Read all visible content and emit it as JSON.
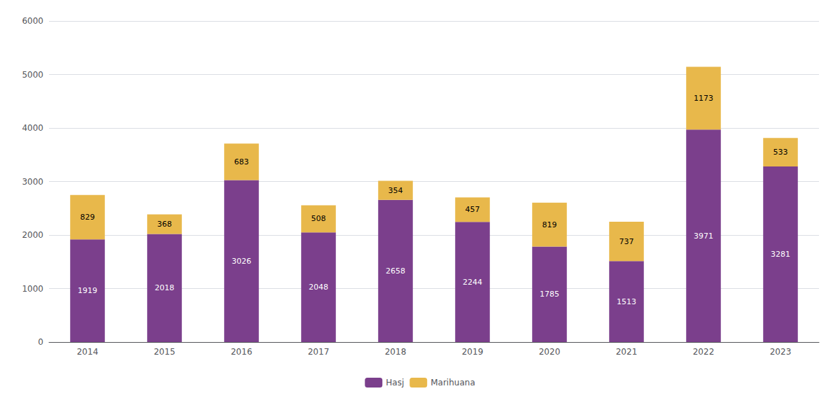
{
  "chart_data": {
    "type": "bar",
    "categories": [
      "2014",
      "2015",
      "2016",
      "2017",
      "2018",
      "2019",
      "2020",
      "2021",
      "2022",
      "2023"
    ],
    "series": [
      {
        "name": "Hasj",
        "color": "#7B3F8C",
        "values": [
          1919,
          2018,
          3026,
          2048,
          2658,
          2244,
          1785,
          1513,
          3971,
          3281
        ]
      },
      {
        "name": "Marihuana",
        "color": "#E8B84B",
        "values": [
          829,
          368,
          683,
          508,
          354,
          457,
          819,
          737,
          1173,
          533
        ]
      }
    ],
    "ylim": [
      0,
      6000
    ],
    "yticks": [
      0,
      1000,
      2000,
      3000,
      4000,
      5000,
      6000
    ],
    "stacked": true,
    "data_labels": true,
    "grid": true,
    "legend": "bottom"
  }
}
